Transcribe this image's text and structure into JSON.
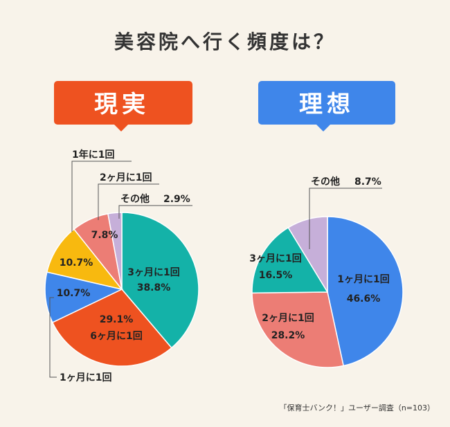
{
  "title": "美容院へ行く頻度は？",
  "source_note": "「保育士バンク！」ユーザー調査（n=103）",
  "colors": {
    "background": "#f8f3ea",
    "real_banner": "#ee5220",
    "ideal_banner": "#3f86ea"
  },
  "chart_data": [
    {
      "type": "pie",
      "title": "現実",
      "banner_color": "#ee5220",
      "slices": [
        {
          "label": "3ヶ月に1回",
          "value": 38.8,
          "display": "38.8%",
          "color": "#14b2a8"
        },
        {
          "label": "6ヶ月に1回",
          "value": 29.1,
          "display": "29.1%",
          "color": "#ee5220"
        },
        {
          "label": "1ヶ月に1回",
          "value": 10.7,
          "display": "10.7%",
          "color": "#3f86ea"
        },
        {
          "label": "1年に1回",
          "value": 10.7,
          "display": "10.7%",
          "color": "#f8b90f"
        },
        {
          "label": "2ヶ月に1回",
          "value": 7.8,
          "display": "7.8%",
          "color": "#ec7d75"
        },
        {
          "label": "その他",
          "value": 2.9,
          "display": "2.9%",
          "color": "#c6afd9"
        }
      ]
    },
    {
      "type": "pie",
      "title": "理想",
      "banner_color": "#3f86ea",
      "slices": [
        {
          "label": "1ヶ月に1回",
          "value": 46.6,
          "display": "46.6%",
          "color": "#3f86ea"
        },
        {
          "label": "2ヶ月に1回",
          "value": 28.2,
          "display": "28.2%",
          "color": "#ec7d75"
        },
        {
          "label": "3ヶ月に1回",
          "value": 16.5,
          "display": "16.5%",
          "color": "#14b2a8"
        },
        {
          "label": "その他",
          "value": 8.7,
          "display": "8.7%",
          "color": "#c6afd9"
        }
      ]
    }
  ]
}
